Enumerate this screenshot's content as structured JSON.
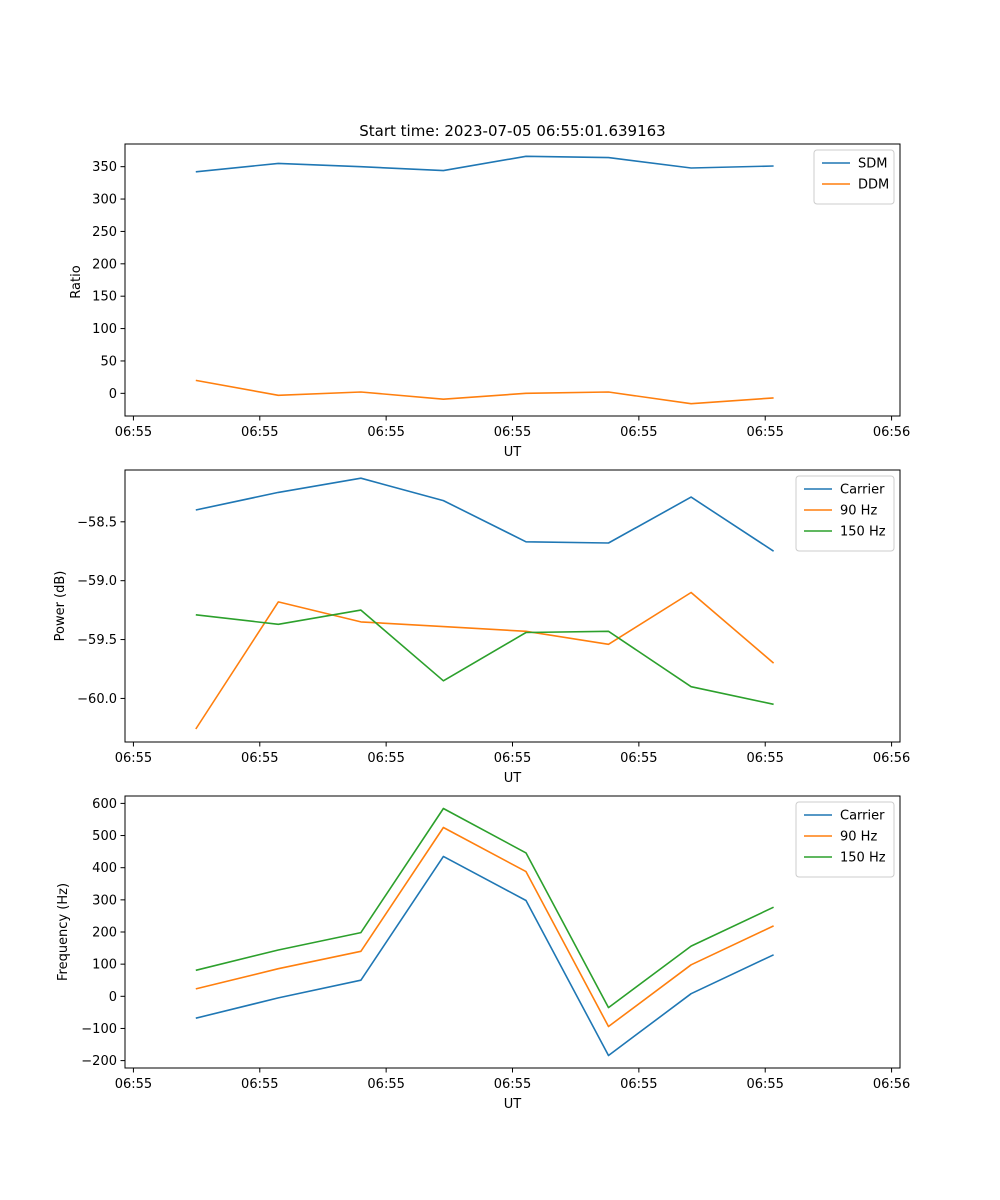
{
  "chart_data": [
    {
      "type": "line",
      "title": "Start time: 2023-07-05 06:55:01.639163",
      "xlabel": "UT",
      "ylabel": "Ratio",
      "xlim": [
        -0.1,
        9.1
      ],
      "ylim": [
        -35,
        385
      ],
      "x_ticks": [
        0,
        1.5,
        3,
        4.5,
        6,
        7.5,
        9
      ],
      "x_tick_labels": [
        "06:55",
        "06:55",
        "06:55",
        "06:55",
        "06:55",
        "06:55",
        "06:56"
      ],
      "y_ticks": [
        0,
        50,
        100,
        150,
        200,
        250,
        300,
        350
      ],
      "y_tick_labels": [
        "0",
        "50",
        "100",
        "150",
        "200",
        "250",
        "300",
        "350"
      ],
      "x": [
        0.74,
        1.72,
        2.7,
        3.68,
        4.66,
        5.64,
        6.62,
        7.6
      ],
      "series": [
        {
          "name": "SDM",
          "color": "#1f77b4",
          "values": [
            342,
            355,
            350,
            344,
            366,
            364,
            348,
            351
          ]
        },
        {
          "name": "DDM",
          "color": "#ff7f0e",
          "values": [
            20,
            -3,
            2,
            -9,
            0,
            2,
            -16,
            -7
          ]
        }
      ],
      "legend": "top-right",
      "grid": false
    },
    {
      "type": "line",
      "title": "",
      "xlabel": "UT",
      "ylabel": "Power (dB)",
      "xlim": [
        -0.1,
        9.1
      ],
      "ylim": [
        -60.37,
        -58.06
      ],
      "x_ticks": [
        0,
        1.5,
        3,
        4.5,
        6,
        7.5,
        9
      ],
      "x_tick_labels": [
        "06:55",
        "06:55",
        "06:55",
        "06:55",
        "06:55",
        "06:55",
        "06:56"
      ],
      "y_ticks": [
        -60.0,
        -59.5,
        -59.0,
        -58.5
      ],
      "y_tick_labels": [
        "−60.0",
        "−59.5",
        "−59.0",
        "−58.5"
      ],
      "x": [
        0.74,
        1.72,
        2.7,
        3.68,
        4.66,
        5.64,
        6.62,
        7.6
      ],
      "series": [
        {
          "name": "Carrier",
          "color": "#1f77b4",
          "values": [
            -58.4,
            -58.25,
            -58.13,
            -58.32,
            -58.67,
            -58.68,
            -58.29,
            -58.75
          ]
        },
        {
          "name": "90 Hz",
          "color": "#ff7f0e",
          "values": [
            -60.26,
            -59.18,
            -59.35,
            -59.39,
            -59.43,
            -59.54,
            -59.1,
            -59.7
          ]
        },
        {
          "name": "150 Hz",
          "color": "#2ca02c",
          "values": [
            -59.29,
            -59.37,
            -59.25,
            -59.85,
            -59.44,
            -59.43,
            -59.9,
            -60.05
          ]
        }
      ],
      "legend": "top-right",
      "grid": false
    },
    {
      "type": "line",
      "title": "",
      "xlabel": "UT",
      "ylabel": "Frequency (Hz)",
      "xlim": [
        -0.1,
        9.1
      ],
      "ylim": [
        -223,
        623
      ],
      "x_ticks": [
        0,
        1.5,
        3,
        4.5,
        6,
        7.5,
        9
      ],
      "x_tick_labels": [
        "06:55",
        "06:55",
        "06:55",
        "06:55",
        "06:55",
        "06:55",
        "06:56"
      ],
      "y_ticks": [
        -200,
        -100,
        0,
        100,
        200,
        300,
        400,
        500,
        600
      ],
      "y_tick_labels": [
        "−200",
        "−100",
        "0",
        "100",
        "200",
        "300",
        "400",
        "500",
        "600"
      ],
      "x": [
        0.74,
        1.72,
        2.7,
        3.68,
        4.66,
        5.64,
        6.62,
        7.6
      ],
      "series": [
        {
          "name": "Carrier",
          "color": "#1f77b4",
          "values": [
            -68,
            -5,
            50,
            435,
            298,
            -184,
            8,
            129
          ]
        },
        {
          "name": "90 Hz",
          "color": "#ff7f0e",
          "values": [
            23,
            86,
            140,
            525,
            388,
            -94,
            98,
            219
          ]
        },
        {
          "name": "150 Hz",
          "color": "#2ca02c",
          "values": [
            81,
            144,
            198,
            584,
            446,
            -35,
            156,
            277
          ]
        }
      ],
      "legend": "top-right",
      "grid": false
    }
  ]
}
